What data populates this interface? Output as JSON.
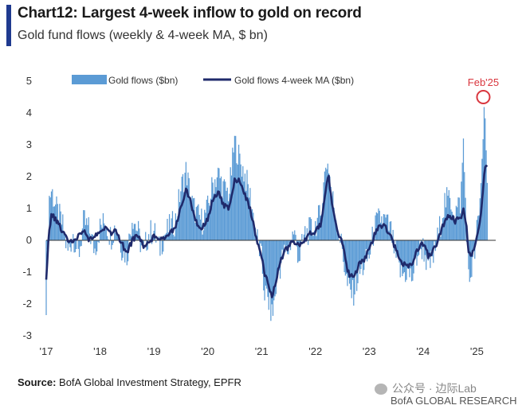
{
  "header": {
    "title": "Chart12: Largest 4-week inflow to gold on record",
    "subtitle": "Gold fund flows (weekly & 4-week MA, $ bn)"
  },
  "footer": {
    "source_label": "Source:",
    "source_text": "BofA Global Investment Strategy, EPFR",
    "watermark": "公众号 · 边际Lab",
    "brand": "BofA GLOBAL RESEARCH"
  },
  "colors": {
    "bars": "#5b9bd5",
    "ma_line": "#1f2a6b",
    "zero_line": "#333333",
    "annotation": "#d9363e"
  },
  "icons": {
    "watermark": "wechat-icon"
  },
  "chart_data": {
    "type": "bar+line",
    "x_start": "2017-01",
    "x_end": "2025-03",
    "xlim": [
      2017.0,
      2025.35
    ],
    "ylim": [
      -3,
      5
    ],
    "yticks": [
      5,
      4,
      3,
      2,
      1,
      0,
      -1,
      -2,
      -3
    ],
    "xticks": [
      {
        "label": "'17",
        "x": 2017.0
      },
      {
        "label": "'18",
        "x": 2018.0
      },
      {
        "label": "'19",
        "x": 2019.0
      },
      {
        "label": "'20",
        "x": 2020.0
      },
      {
        "label": "'21",
        "x": 2021.0
      },
      {
        "label": "'22",
        "x": 2022.0
      },
      {
        "label": "'23",
        "x": 2023.0
      },
      {
        "label": "'24",
        "x": 2024.0
      },
      {
        "label": "'25",
        "x": 2025.0
      }
    ],
    "legend": {
      "position": "top-left"
    },
    "grid": false,
    "annotation": {
      "label": "Feb'25",
      "x": 2025.12,
      "y": 4.5
    },
    "series": [
      {
        "name": "Gold flows ($bn)",
        "kind": "bar",
        "anchors": [
          [
            2017.0,
            -1.9
          ],
          [
            2017.05,
            1.3
          ],
          [
            2017.1,
            1.6
          ],
          [
            2017.2,
            0.9
          ],
          [
            2017.3,
            0.5
          ],
          [
            2017.4,
            -0.4
          ],
          [
            2017.5,
            0.2
          ],
          [
            2017.6,
            -0.5
          ],
          [
            2017.7,
            0.6
          ],
          [
            2017.8,
            0.3
          ],
          [
            2017.9,
            -0.3
          ],
          [
            2018.0,
            0.4
          ],
          [
            2018.1,
            0.6
          ],
          [
            2018.2,
            0.1
          ],
          [
            2018.3,
            0.5
          ],
          [
            2018.4,
            -0.2
          ],
          [
            2018.5,
            -0.5
          ],
          [
            2018.6,
            0.8
          ],
          [
            2018.7,
            0.3
          ],
          [
            2018.8,
            -0.4
          ],
          [
            2018.9,
            0.2
          ],
          [
            2019.0,
            0.3
          ],
          [
            2019.1,
            -0.3
          ],
          [
            2019.2,
            0.2
          ],
          [
            2019.3,
            0.4
          ],
          [
            2019.4,
            0.6
          ],
          [
            2019.5,
            1.6
          ],
          [
            2019.6,
            2.2
          ],
          [
            2019.7,
            1.2
          ],
          [
            2019.8,
            0.8
          ],
          [
            2019.9,
            0.6
          ],
          [
            2020.0,
            1.0
          ],
          [
            2020.1,
            1.8
          ],
          [
            2020.2,
            2.1
          ],
          [
            2020.3,
            1.6
          ],
          [
            2020.4,
            1.5
          ],
          [
            2020.5,
            3.1
          ],
          [
            2020.6,
            2.5
          ],
          [
            2020.7,
            2.0
          ],
          [
            2020.8,
            1.3
          ],
          [
            2020.9,
            0.2
          ],
          [
            2021.0,
            -0.6
          ],
          [
            2021.05,
            -1.6
          ],
          [
            2021.15,
            -2.0
          ],
          [
            2021.2,
            -2.4
          ],
          [
            2021.3,
            -1.1
          ],
          [
            2021.4,
            -0.5
          ],
          [
            2021.5,
            -0.3
          ],
          [
            2021.6,
            0.3
          ],
          [
            2021.7,
            -0.6
          ],
          [
            2021.8,
            0.2
          ],
          [
            2021.9,
            0.3
          ],
          [
            2022.0,
            0.5
          ],
          [
            2022.1,
            0.8
          ],
          [
            2022.2,
            2.5
          ],
          [
            2022.25,
            2.3
          ],
          [
            2022.3,
            1.5
          ],
          [
            2022.4,
            0.6
          ],
          [
            2022.5,
            -0.3
          ],
          [
            2022.6,
            -1.5
          ],
          [
            2022.7,
            -1.7
          ],
          [
            2022.8,
            -1.1
          ],
          [
            2022.9,
            -0.8
          ],
          [
            2023.0,
            -0.5
          ],
          [
            2023.1,
            0.4
          ],
          [
            2023.2,
            0.7
          ],
          [
            2023.3,
            0.6
          ],
          [
            2023.4,
            0.3
          ],
          [
            2023.5,
            -0.6
          ],
          [
            2023.6,
            -1.1
          ],
          [
            2023.7,
            -1.0
          ],
          [
            2023.8,
            -1.2
          ],
          [
            2023.9,
            -0.4
          ],
          [
            2024.0,
            -0.2
          ],
          [
            2024.1,
            -0.9
          ],
          [
            2024.2,
            -0.5
          ],
          [
            2024.3,
            0.3
          ],
          [
            2024.4,
            1.2
          ],
          [
            2024.5,
            1.3
          ],
          [
            2024.6,
            0.9
          ],
          [
            2024.7,
            1.2
          ],
          [
            2024.75,
            3.1
          ],
          [
            2024.8,
            0.7
          ],
          [
            2024.85,
            -1.4
          ],
          [
            2024.9,
            -0.9
          ],
          [
            2024.95,
            -0.6
          ],
          [
            2025.0,
            0.3
          ],
          [
            2025.05,
            0.9
          ],
          [
            2025.1,
            2.8
          ],
          [
            2025.15,
            4.5
          ],
          [
            2025.2,
            1.2
          ]
        ]
      },
      {
        "name": "Gold flows 4-week MA ($bn)",
        "kind": "line",
        "anchors": [
          [
            2017.0,
            -1.2
          ],
          [
            2017.05,
            0.2
          ],
          [
            2017.1,
            0.8
          ],
          [
            2017.2,
            0.6
          ],
          [
            2017.3,
            0.3
          ],
          [
            2017.4,
            0.0
          ],
          [
            2017.5,
            -0.1
          ],
          [
            2017.6,
            0.2
          ],
          [
            2017.7,
            0.3
          ],
          [
            2017.8,
            0.0
          ],
          [
            2017.9,
            0.1
          ],
          [
            2018.0,
            0.3
          ],
          [
            2018.1,
            0.4
          ],
          [
            2018.2,
            0.2
          ],
          [
            2018.3,
            0.3
          ],
          [
            2018.4,
            -0.1
          ],
          [
            2018.5,
            -0.4
          ],
          [
            2018.6,
            0.0
          ],
          [
            2018.7,
            0.2
          ],
          [
            2018.8,
            -0.2
          ],
          [
            2018.9,
            -0.1
          ],
          [
            2019.0,
            0.1
          ],
          [
            2019.1,
            0.0
          ],
          [
            2019.2,
            0.1
          ],
          [
            2019.3,
            0.2
          ],
          [
            2019.4,
            0.4
          ],
          [
            2019.5,
            1.1
          ],
          [
            2019.6,
            1.6
          ],
          [
            2019.7,
            1.1
          ],
          [
            2019.8,
            0.5
          ],
          [
            2019.9,
            0.4
          ],
          [
            2020.0,
            0.7
          ],
          [
            2020.1,
            1.3
          ],
          [
            2020.2,
            1.5
          ],
          [
            2020.3,
            1.1
          ],
          [
            2020.4,
            1.0
          ],
          [
            2020.5,
            1.9
          ],
          [
            2020.6,
            1.9
          ],
          [
            2020.7,
            1.4
          ],
          [
            2020.8,
            0.9
          ],
          [
            2020.9,
            0.1
          ],
          [
            2021.0,
            -0.5
          ],
          [
            2021.05,
            -1.0
          ],
          [
            2021.15,
            -1.5
          ],
          [
            2021.2,
            -1.8
          ],
          [
            2021.3,
            -1.0
          ],
          [
            2021.4,
            -0.4
          ],
          [
            2021.5,
            -0.2
          ],
          [
            2021.6,
            0.0
          ],
          [
            2021.7,
            -0.2
          ],
          [
            2021.8,
            0.0
          ],
          [
            2021.9,
            0.2
          ],
          [
            2022.0,
            0.3
          ],
          [
            2022.1,
            0.5
          ],
          [
            2022.2,
            1.7
          ],
          [
            2022.25,
            2.0
          ],
          [
            2022.3,
            1.2
          ],
          [
            2022.4,
            0.4
          ],
          [
            2022.5,
            -0.1
          ],
          [
            2022.6,
            -1.0
          ],
          [
            2022.7,
            -1.2
          ],
          [
            2022.8,
            -0.8
          ],
          [
            2022.9,
            -0.6
          ],
          [
            2023.0,
            -0.3
          ],
          [
            2023.1,
            0.2
          ],
          [
            2023.2,
            0.5
          ],
          [
            2023.3,
            0.4
          ],
          [
            2023.4,
            0.1
          ],
          [
            2023.5,
            -0.3
          ],
          [
            2023.6,
            -0.7
          ],
          [
            2023.7,
            -0.8
          ],
          [
            2023.8,
            -0.7
          ],
          [
            2023.9,
            -0.3
          ],
          [
            2024.0,
            -0.1
          ],
          [
            2024.1,
            -0.5
          ],
          [
            2024.2,
            -0.3
          ],
          [
            2024.3,
            0.1
          ],
          [
            2024.4,
            0.6
          ],
          [
            2024.5,
            0.8
          ],
          [
            2024.6,
            0.6
          ],
          [
            2024.7,
            0.7
          ],
          [
            2024.75,
            1.0
          ],
          [
            2024.8,
            0.5
          ],
          [
            2024.85,
            -0.4
          ],
          [
            2024.9,
            -0.5
          ],
          [
            2024.95,
            -0.3
          ],
          [
            2025.0,
            0.1
          ],
          [
            2025.05,
            0.5
          ],
          [
            2025.1,
            1.3
          ],
          [
            2025.15,
            2.4
          ],
          [
            2025.2,
            2.2
          ]
        ]
      }
    ]
  }
}
